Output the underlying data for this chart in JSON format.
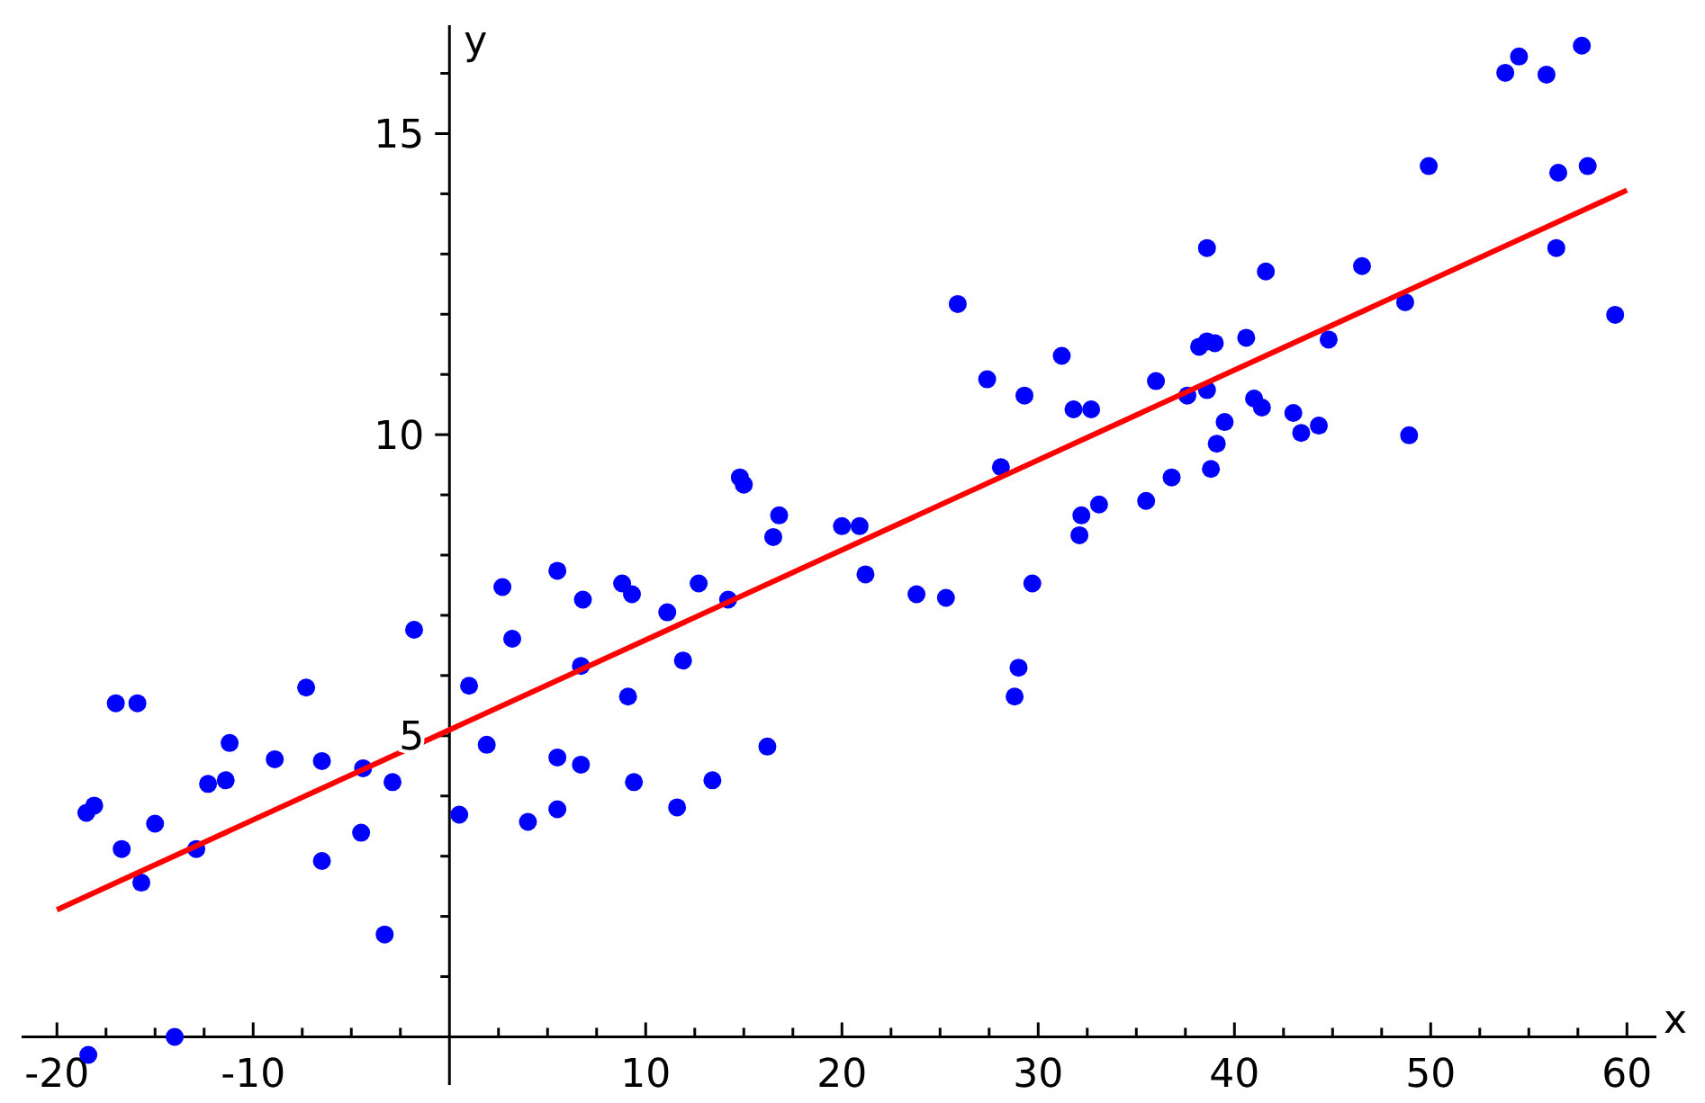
{
  "chart_data": {
    "type": "scatter",
    "xlabel": "x",
    "ylabel": "y",
    "xlim": [
      -21.8,
      61.5
    ],
    "ylim": [
      -0.8,
      16.8
    ],
    "xticks": [
      -20,
      {
        "value": -17.5,
        "label": null
      },
      {
        "value": -15,
        "label": null
      },
      {
        "value": -12.5,
        "label": null
      },
      -10,
      {
        "value": -7.5,
        "label": null
      },
      {
        "value": -5,
        "label": null
      },
      {
        "value": -2.5,
        "label": null
      },
      {
        "value": 2.5,
        "label": null
      },
      {
        "value": 5,
        "label": null
      },
      {
        "value": 7.5,
        "label": null
      },
      10,
      {
        "value": 12.5,
        "label": null
      },
      {
        "value": 15,
        "label": null
      },
      {
        "value": 17.5,
        "label": null
      },
      20,
      {
        "value": 22.5,
        "label": null
      },
      {
        "value": 25,
        "label": null
      },
      {
        "value": 27.5,
        "label": null
      },
      30,
      {
        "value": 32.5,
        "label": null
      },
      {
        "value": 35,
        "label": null
      },
      {
        "value": 37.5,
        "label": null
      },
      40,
      {
        "value": 42.5,
        "label": null
      },
      {
        "value": 45,
        "label": null
      },
      {
        "value": 47.5,
        "label": null
      },
      50,
      {
        "value": 52.5,
        "label": null
      },
      {
        "value": 55,
        "label": null
      },
      {
        "value": 57.5,
        "label": null
      },
      60
    ],
    "yticks": [
      {
        "value": 1,
        "label": null
      },
      {
        "value": 2,
        "label": null
      },
      {
        "value": 3,
        "label": null
      },
      {
        "value": 4,
        "label": null
      },
      5,
      {
        "value": 6,
        "label": null
      },
      {
        "value": 7,
        "label": null
      },
      {
        "value": 8,
        "label": null
      },
      {
        "value": 9,
        "label": null
      },
      10,
      {
        "value": 11,
        "label": null
      },
      {
        "value": 12,
        "label": null
      },
      {
        "value": 13,
        "label": null
      },
      {
        "value": 14,
        "label": null
      },
      15,
      {
        "value": 16,
        "label": null
      }
    ],
    "grid": false,
    "series": [
      {
        "color": "#0000ff",
        "marker": "circle",
        "x": [
          -18.5,
          -18.1,
          -18.4,
          -17.0,
          -16.7,
          -15.9,
          -15.7,
          -15.0,
          -14.0,
          -12.9,
          -12.3,
          -11.4,
          -11.2,
          -8.9,
          -7.3,
          -6.5,
          -6.5,
          -4.4,
          -4.5,
          -3.3,
          -2.9,
          -1.8,
          0.5,
          1.0,
          1.9,
          2.7,
          3.2,
          4.0,
          5.5,
          5.5,
          5.5,
          6.7,
          6.7,
          6.8,
          8.8,
          9.3,
          9.1,
          9.4,
          11.1,
          11.6,
          11.9,
          12.7,
          13.4,
          14.2,
          14.8,
          15.0,
          16.2,
          16.5,
          16.8,
          20.0,
          20.9,
          21.2,
          23.8,
          25.3,
          25.9,
          27.4,
          28.1,
          28.8,
          29.0,
          29.3,
          29.7,
          31.2,
          31.8,
          32.1,
          32.2,
          32.7,
          33.1,
          35.5,
          36.0,
          36.8,
          37.6,
          38.2,
          38.6,
          38.6,
          38.6,
          38.8,
          39.0,
          39.1,
          39.5,
          40.6,
          41.0,
          41.4,
          41.6,
          43.0,
          43.4,
          44.3,
          44.8,
          46.5,
          48.7,
          48.9,
          49.9,
          53.8,
          54.5,
          55.9,
          56.4,
          56.5,
          57.7,
          58.0,
          59.4
        ],
        "values": [
          3.72,
          3.84,
          -0.3,
          5.54,
          3.12,
          5.54,
          2.56,
          3.54,
          0.0,
          3.12,
          4.2,
          4.26,
          4.88,
          4.61,
          5.8,
          4.58,
          2.92,
          4.46,
          3.39,
          1.7,
          4.23,
          6.76,
          3.69,
          5.83,
          4.85,
          7.47,
          6.61,
          3.57,
          4.64,
          3.78,
          7.74,
          4.52,
          6.16,
          7.26,
          7.53,
          7.35,
          5.65,
          4.23,
          7.05,
          3.81,
          6.25,
          7.53,
          4.26,
          7.26,
          9.29,
          9.17,
          4.82,
          8.3,
          8.66,
          8.48,
          8.48,
          7.68,
          7.35,
          7.29,
          12.17,
          10.92,
          9.46,
          5.65,
          6.13,
          10.65,
          7.53,
          11.31,
          10.42,
          8.33,
          8.66,
          10.42,
          8.84,
          8.9,
          10.89,
          9.29,
          10.65,
          11.46,
          13.1,
          11.55,
          10.74,
          9.43,
          11.52,
          9.85,
          10.21,
          11.61,
          10.6,
          10.45,
          12.71,
          10.36,
          10.03,
          10.15,
          11.58,
          12.8,
          12.2,
          9.99,
          14.46,
          16.01,
          16.28,
          15.98,
          13.1,
          14.35,
          16.46,
          14.46,
          11.99
        ]
      },
      {
        "type": "line",
        "color": "#ff0000",
        "marker": "none",
        "line_style": "solid",
        "x": [
          -20,
          60
        ],
        "values": [
          2.11,
          14.06
        ]
      }
    ]
  }
}
